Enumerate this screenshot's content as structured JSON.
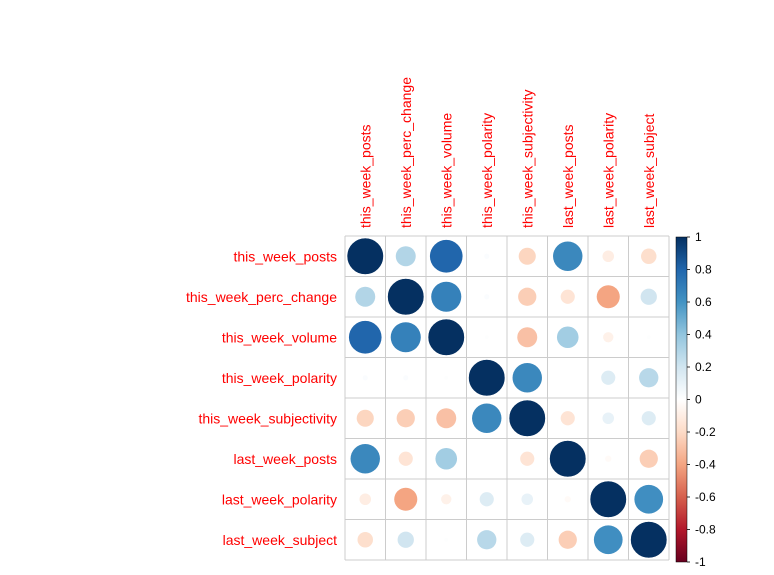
{
  "chart_data": {
    "type": "heatmap",
    "variables": [
      "this_week_posts",
      "this_week_perc_change",
      "this_week_volume",
      "this_week_polarity",
      "this_week_subjectivity",
      "last_week_posts",
      "last_week_polarity",
      "last_week_subject"
    ],
    "matrix": [
      [
        1.0,
        0.3,
        0.8,
        0.02,
        -0.22,
        0.65,
        -0.1,
        -0.18
      ],
      [
        0.3,
        1.0,
        0.68,
        0.02,
        -0.25,
        -0.15,
        -0.4,
        0.2
      ],
      [
        0.8,
        0.68,
        1.0,
        0.01,
        -0.3,
        0.35,
        -0.08,
        0.01
      ],
      [
        0.02,
        0.02,
        0.01,
        1.0,
        0.65,
        0.0,
        0.15,
        0.28
      ],
      [
        -0.22,
        -0.25,
        -0.3,
        0.65,
        1.0,
        -0.15,
        0.1,
        0.15
      ],
      [
        0.65,
        -0.15,
        0.35,
        0.0,
        -0.15,
        1.0,
        -0.03,
        -0.25
      ],
      [
        -0.1,
        -0.4,
        -0.08,
        0.15,
        0.1,
        -0.03,
        1.0,
        0.62
      ],
      [
        -0.18,
        0.2,
        0.01,
        0.28,
        0.15,
        -0.25,
        0.62,
        1.0
      ]
    ],
    "colorbar": {
      "ticks": [
        "1",
        "0.8",
        "0.6",
        "0.4",
        "0.2",
        "0",
        "-0.2",
        "-0.4",
        "-0.6",
        "-0.8",
        "-1"
      ],
      "range": [
        -1,
        1
      ],
      "colors": [
        "#67001F",
        "#B2182B",
        "#D6604D",
        "#F4A582",
        "#FDDBC7",
        "#FFFFFF",
        "#D1E5F0",
        "#92C5DE",
        "#4393C3",
        "#2166AC",
        "#053061"
      ]
    },
    "label_color": "#ff0000",
    "grid_color": "#cccccc"
  }
}
